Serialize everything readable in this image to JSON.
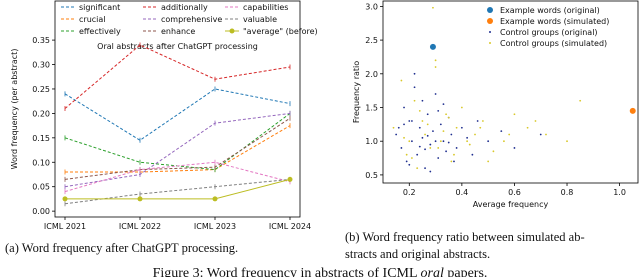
{
  "chart_data": [
    {
      "type": "line",
      "title": "Oral abstracts after ChatGPT processing",
      "ylabel": "Word frequency (per abstract)",
      "caption": "(a) Word frequency after ChatGPT processing.",
      "categories": [
        "ICML 2021",
        "ICML 2022",
        "ICML 2023",
        "ICML 2024"
      ],
      "ylim": [
        -0.012,
        0.43
      ],
      "yticks": [
        {
          "value": 0,
          "label": "0.00"
        },
        {
          "value": 0.05,
          "label": "0.05"
        },
        {
          "value": 0.1,
          "label": "0.10"
        },
        {
          "value": 0.15,
          "label": "0.15"
        },
        {
          "value": 0.2,
          "label": "0.20"
        },
        {
          "value": 0.25,
          "label": "0.25"
        },
        {
          "value": 0.3,
          "label": "0.30"
        },
        {
          "value": 0.35,
          "label": "0.35"
        }
      ],
      "series": [
        {
          "name": "significant",
          "color": "#1f77b4",
          "style": "dashed",
          "values": [
            0.24,
            0.145,
            0.25,
            0.22
          ]
        },
        {
          "name": "crucial",
          "color": "#ff7f0e",
          "style": "dashed",
          "values": [
            0.08,
            0.08,
            0.085,
            0.175
          ]
        },
        {
          "name": "effectively",
          "color": "#2ca02c",
          "style": "dashed",
          "values": [
            0.15,
            0.1,
            0.085,
            0.2
          ]
        },
        {
          "name": "additionally",
          "color": "#d62728",
          "style": "dashed",
          "values": [
            0.21,
            0.34,
            0.27,
            0.295
          ]
        },
        {
          "name": "comprehensive",
          "color": "#9467bd",
          "style": "dashed",
          "values": [
            0.05,
            0.075,
            0.18,
            0.2
          ]
        },
        {
          "name": "enhance",
          "color": "#8c564b",
          "style": "dashed",
          "values": [
            0.065,
            0.085,
            0.09,
            0.19
          ]
        },
        {
          "name": "capabilities",
          "color": "#e377c2",
          "style": "dashed",
          "values": [
            0.04,
            0.085,
            0.1,
            0.06
          ]
        },
        {
          "name": "valuable",
          "color": "#7f7f7f",
          "style": "dashed",
          "values": [
            0.015,
            0.035,
            0.05,
            0.065
          ]
        },
        {
          "name": "\"average\" (before)",
          "color": "#bcbd22",
          "style": "solid",
          "marker": "o",
          "values": [
            0.025,
            0.025,
            0.025,
            0.065
          ]
        }
      ]
    },
    {
      "type": "scatter",
      "xlabel": "Average frequency",
      "ylabel": "Frequency ratio",
      "caption": [
        "(b) Word frequency ratio between simulated ab-",
        "stracts and original abstracts."
      ],
      "xlim": [
        0.1,
        1.07
      ],
      "ylim": [
        0.38,
        3.08
      ],
      "xticks": [
        {
          "value": 0.2,
          "label": "0.2"
        },
        {
          "value": 0.4,
          "label": "0.4"
        },
        {
          "value": 0.6,
          "label": "0.6"
        },
        {
          "value": 0.8,
          "label": "0.8"
        },
        {
          "value": 1,
          "label": "1.0"
        }
      ],
      "yticks": [
        {
          "value": 0.5,
          "label": "0.5"
        },
        {
          "value": 1,
          "label": "1.0"
        },
        {
          "value": 1.5,
          "label": "1.5"
        },
        {
          "value": 2,
          "label": "2.0"
        },
        {
          "value": 2.5,
          "label": "2.5"
        },
        {
          "value": 3,
          "label": "3.0"
        }
      ],
      "series": [
        {
          "name": "Example words (original)",
          "color": "#1f77b4",
          "size": "large",
          "x": [
            0.29
          ],
          "values": [
            2.4
          ]
        },
        {
          "name": "Example words (simulated)",
          "color": "#ff7f0e",
          "size": "large",
          "x": [
            1.05
          ],
          "values": [
            1.45
          ]
        },
        {
          "name": "Control groups (original)",
          "color": "#1f2f8f",
          "size": "small",
          "x": [
            0.15,
            0.17,
            0.18,
            0.19,
            0.2,
            0.21,
            0.22,
            0.23,
            0.24,
            0.25,
            0.26,
            0.27,
            0.28,
            0.29,
            0.3,
            0.31,
            0.32,
            0.33,
            0.34,
            0.35,
            0.36,
            0.38,
            0.4,
            0.42,
            0.44,
            0.46,
            0.5,
            0.55,
            0.6,
            0.7,
            0.2,
            0.22,
            0.25,
            0.28,
            0.31,
            0.18,
            0.24,
            0.27,
            0.33,
            0.37,
            0.16,
            0.21,
            0.26,
            0.3,
            0.35
          ],
          "values": [
            1.1,
            0.9,
            1.5,
            0.7,
            1.3,
            1.0,
            1.8,
            0.8,
            1.2,
            1.05,
            0.6,
            1.4,
            0.95,
            1.15,
            1.7,
            0.75,
            1.25,
            1.0,
            0.85,
            1.35,
            1.1,
            0.9,
            1.2,
            1.05,
            0.8,
            1.3,
            1.0,
            1.15,
            0.9,
            1.1,
            0.65,
            2.0,
            1.6,
            0.55,
            1.45,
            1.25,
            0.92,
            1.08,
            1.55,
            0.7,
            1.2,
            1.3,
            0.88,
            1.0,
            0.98
          ]
        },
        {
          "name": "Control groups (simulated)",
          "color": "#d9c82a",
          "size": "small",
          "x": [
            0.14,
            0.17,
            0.19,
            0.2,
            0.22,
            0.23,
            0.25,
            0.26,
            0.28,
            0.3,
            0.32,
            0.34,
            0.36,
            0.38,
            0.4,
            0.43,
            0.45,
            0.48,
            0.52,
            0.56,
            0.6,
            0.65,
            0.72,
            0.8,
            0.85,
            0.18,
            0.21,
            0.24,
            0.27,
            0.29,
            0.31,
            0.33,
            0.35,
            0.37,
            0.42,
            0.47,
            0.5,
            0.58,
            0.68,
            0.3
          ],
          "values": [
            1.2,
            1.9,
            0.8,
            1.0,
            1.6,
            0.6,
            1.3,
            1.1,
            0.9,
            2.1,
            1.0,
            1.4,
            0.7,
            1.2,
            1.5,
            0.95,
            1.1,
            1.3,
            0.85,
            1.0,
            1.4,
            1.2,
            1.1,
            1.0,
            1.6,
            1.05,
            0.75,
            1.45,
            1.25,
            2.98,
            0.9,
            1.15,
            1.35,
            0.8,
            1.0,
            1.2,
            0.7,
            1.1,
            1.3,
            2.2
          ]
        }
      ]
    }
  ],
  "figure_caption": {
    "before": "Figure 3: Word frequency in abstracts of ICML ",
    "emphasis": "oral",
    "after": " papers."
  }
}
